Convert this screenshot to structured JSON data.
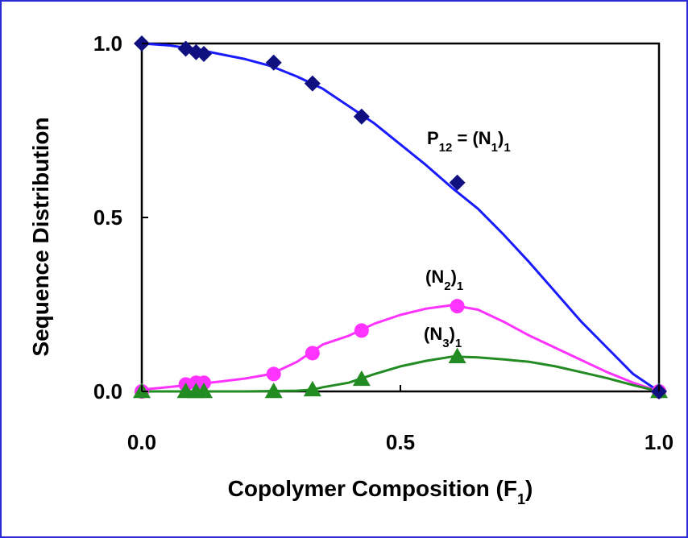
{
  "chart_data": {
    "type": "line",
    "xlabel": {
      "main": "Copolymer Composition (F",
      "sub": "1",
      "tail": ")"
    },
    "ylabel": "Sequence Distribution",
    "xlim": [
      0,
      1
    ],
    "ylim": [
      0,
      1
    ],
    "x_ticks": [
      "0.0",
      "0.5",
      "1.0"
    ],
    "y_ticks": [
      "0.0",
      "0.5",
      "1.0"
    ],
    "grid": false,
    "series": [
      {
        "key": "p12",
        "label": {
          "parts": [
            [
              "P",
              ""
            ],
            [
              "12",
              "sub"
            ],
            [
              " = (N",
              ""
            ],
            [
              "1",
              "sub"
            ],
            [
              ")",
              ""
            ],
            [
              "1",
              "sub"
            ]
          ]
        },
        "color": "#1a1aff",
        "marker_color": "#101080",
        "marker": "diamond",
        "points": {
          "x": [
            0.0,
            0.085,
            0.105,
            0.12,
            0.255,
            0.33,
            0.425,
            0.61,
            1.0
          ],
          "y": [
            1.0,
            0.985,
            0.975,
            0.97,
            0.945,
            0.885,
            0.79,
            0.6,
            0.0
          ]
        },
        "curve": {
          "x": [
            0.0,
            0.05,
            0.1,
            0.15,
            0.2,
            0.25,
            0.3,
            0.35,
            0.4,
            0.45,
            0.5,
            0.55,
            0.6,
            0.65,
            0.7,
            0.75,
            0.8,
            0.85,
            0.9,
            0.95,
            1.0
          ],
          "y": [
            1.0,
            0.995,
            0.985,
            0.97,
            0.955,
            0.935,
            0.905,
            0.87,
            0.82,
            0.77,
            0.71,
            0.65,
            0.585,
            0.525,
            0.45,
            0.37,
            0.285,
            0.2,
            0.125,
            0.05,
            0.0
          ]
        }
      },
      {
        "key": "n2",
        "label": {
          "parts": [
            [
              "(N",
              ""
            ],
            [
              "2",
              "sub"
            ],
            [
              ")",
              ""
            ],
            [
              "1",
              "sub"
            ]
          ]
        },
        "color": "#ff33ff",
        "marker_color": "#ff33ff",
        "marker": "circle",
        "points": {
          "x": [
            0.0,
            0.085,
            0.105,
            0.12,
            0.255,
            0.33,
            0.425,
            0.61,
            1.0
          ],
          "y": [
            0.0,
            0.02,
            0.025,
            0.025,
            0.05,
            0.11,
            0.175,
            0.245,
            0.0
          ]
        },
        "curve": {
          "x": [
            0.0,
            0.05,
            0.1,
            0.15,
            0.2,
            0.25,
            0.3,
            0.35,
            0.4,
            0.45,
            0.5,
            0.55,
            0.6,
            0.65,
            0.7,
            0.75,
            0.8,
            0.85,
            0.9,
            0.95,
            1.0
          ],
          "y": [
            0.005,
            0.012,
            0.02,
            0.028,
            0.037,
            0.05,
            0.085,
            0.135,
            0.16,
            0.195,
            0.22,
            0.238,
            0.248,
            0.235,
            0.2,
            0.16,
            0.125,
            0.09,
            0.055,
            0.025,
            0.0
          ]
        }
      },
      {
        "key": "n3",
        "label": {
          "parts": [
            [
              "(N",
              ""
            ],
            [
              "3",
              "sub"
            ],
            [
              ")",
              ""
            ],
            [
              "1",
              "sub"
            ]
          ]
        },
        "color": "#228b22",
        "marker_color": "#228b22",
        "marker": "triangle",
        "points": {
          "x": [
            0.0,
            0.085,
            0.105,
            0.12,
            0.255,
            0.33,
            0.425,
            0.61,
            1.0
          ],
          "y": [
            0.0,
            0.0,
            0.0,
            0.0,
            0.0,
            0.005,
            0.035,
            0.1,
            0.0
          ]
        },
        "curve": {
          "x": [
            0.0,
            0.1,
            0.2,
            0.3,
            0.33,
            0.35,
            0.4,
            0.45,
            0.5,
            0.55,
            0.6,
            0.65,
            0.7,
            0.75,
            0.8,
            0.85,
            0.9,
            0.95,
            1.0
          ],
          "y": [
            0.0,
            0.0,
            0.0,
            0.002,
            0.005,
            0.012,
            0.025,
            0.05,
            0.072,
            0.088,
            0.1,
            0.098,
            0.092,
            0.085,
            0.072,
            0.055,
            0.038,
            0.018,
            0.0
          ]
        }
      }
    ]
  }
}
